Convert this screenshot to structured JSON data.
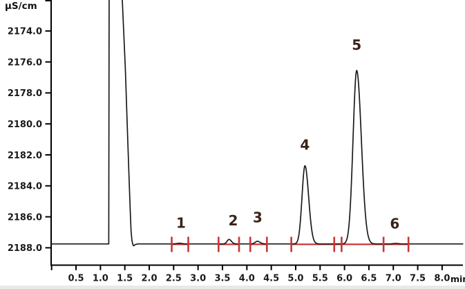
{
  "chart_data": {
    "type": "line",
    "subtype": "ion-chromatography-chromatogram",
    "title": "",
    "y_axis": {
      "unit": "µS/cm",
      "inverted": true,
      "tick_values": [
        2172.0,
        2174.0,
        2176.0,
        2178.0,
        2180.0,
        2182.0,
        2184.0,
        2186.0,
        2188.0
      ],
      "tick_labels": [
        "",
        "2174.0",
        "2176.0",
        "2178.0",
        "2180.0",
        "2182.0",
        "2184.0",
        "2186.0",
        "2188.0"
      ],
      "range": [
        2172.0,
        2189.1
      ]
    },
    "x_axis": {
      "unit": "min",
      "tick_values": [
        0,
        0.5,
        1.0,
        1.5,
        2.0,
        2.5,
        3.0,
        3.5,
        4.0,
        4.5,
        5.0,
        5.5,
        6.0,
        6.5,
        7.0,
        7.5,
        8.0
      ],
      "tick_labels": [
        "",
        "0.5",
        "1.0",
        "1.5",
        "2.0",
        "2.5",
        "3.0",
        "3.5",
        "4.0",
        "4.5",
        "5.0",
        "5.5",
        "6.0",
        "6.5",
        "7.0",
        "7.5",
        "8.0"
      ],
      "range": [
        0,
        8.43
      ]
    },
    "baseline_uS_cm": 2187.75,
    "injection_peak": {
      "note": "large unretained injection peak, clipped at top of plot",
      "profile_t_v": [
        [
          1.175,
          2187.75
        ],
        [
          1.176,
          2170.3
        ],
        [
          1.424,
          2170.3
        ],
        [
          1.51,
          2176.4
        ],
        [
          1.558,
          2180.9
        ],
        [
          1.607,
          2185.3
        ],
        [
          1.627,
          2186.9
        ],
        [
          1.648,
          2187.6
        ],
        [
          1.675,
          2187.88
        ],
        [
          1.71,
          2187.8
        ],
        [
          1.75,
          2187.76
        ]
      ]
    },
    "peaks": [
      {
        "num": "1",
        "retention_min": 2.62,
        "apex_uS": 2187.71,
        "height_uS": 0.04,
        "sigma_left_min": 0.05,
        "sigma_right_min": 0.05,
        "label_t": 2.65,
        "label_v": 2186.4
      },
      {
        "num": "2",
        "retention_min": 3.635,
        "apex_uS": 2187.46,
        "height_uS": 0.29,
        "sigma_left_min": 0.04,
        "sigma_right_min": 0.048,
        "label_t": 3.72,
        "label_v": 2186.25
      },
      {
        "num": "3",
        "retention_min": 4.215,
        "apex_uS": 2187.58,
        "height_uS": 0.17,
        "sigma_left_min": 0.045,
        "sigma_right_min": 0.055,
        "label_t": 4.22,
        "label_v": 2186.05
      },
      {
        "num": "4",
        "retention_min": 5.19,
        "apex_uS": 2182.7,
        "height_uS": 5.05,
        "sigma_left_min": 0.06,
        "sigma_right_min": 0.075,
        "label_t": 5.19,
        "label_v": 2181.35
      },
      {
        "num": "5",
        "retention_min": 6.25,
        "apex_uS": 2176.55,
        "height_uS": 11.2,
        "sigma_left_min": 0.075,
        "sigma_right_min": 0.095,
        "label_t": 6.25,
        "label_v": 2174.9
      },
      {
        "num": "6",
        "retention_min": 7.05,
        "apex_uS": 2187.72,
        "height_uS": 0.03,
        "sigma_left_min": 0.05,
        "sigma_right_min": 0.05,
        "label_t": 7.03,
        "label_v": 2186.45
      }
    ],
    "integration": {
      "segments_min": [
        [
          2.46,
          2.8
        ],
        [
          3.42,
          3.84
        ],
        [
          4.07,
          4.41
        ],
        [
          4.91,
          7.31
        ]
      ],
      "tick_marks_min": [
        2.46,
        2.8,
        3.42,
        3.84,
        4.07,
        4.41,
        4.91,
        5.79,
        5.94,
        6.8,
        7.31
      ]
    },
    "colors": {
      "trace": "#1a1a1a",
      "axis": "#000000",
      "tick_label": "#1a1a1a",
      "peak_label": "#3a2318",
      "integration": "#cc3434",
      "background": "#ffffff",
      "bottom_edge_strip": "#ebe9e5"
    }
  }
}
